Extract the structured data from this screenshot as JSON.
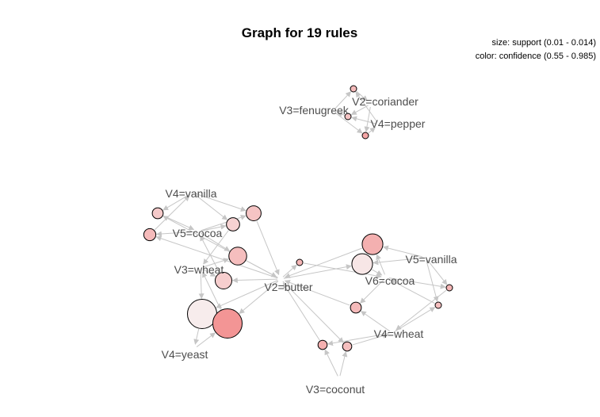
{
  "title": "Graph for 19 rules",
  "legend": {
    "size": "size: support (0.01 - 0.014)",
    "color": "color: confidence (0.55 - 0.985)"
  },
  "colors": {
    "edge": "#c6c6c6",
    "label": "#4d4d4d",
    "low_confidence": "#f7ecec",
    "high_confidence": "#f39595"
  },
  "items": [
    {
      "id": "fenugreek",
      "label": "V3=fenugreek"
    },
    {
      "id": "coriander",
      "label": "V2=coriander"
    },
    {
      "id": "pepper",
      "label": "V4=pepper"
    },
    {
      "id": "vanilla4",
      "label": "V4=vanilla"
    },
    {
      "id": "cocoa5",
      "label": "V5=cocoa"
    },
    {
      "id": "wheat3",
      "label": "V3=wheat"
    },
    {
      "id": "butter",
      "label": "V2=butter"
    },
    {
      "id": "yeast",
      "label": "V4=yeast"
    },
    {
      "id": "vanilla5",
      "label": "V5=vanilla"
    },
    {
      "id": "cocoa6",
      "label": "V6=cocoa"
    },
    {
      "id": "wheat4",
      "label": "V4=wheat"
    },
    {
      "id": "coconut",
      "label": "V3=coconut"
    }
  ],
  "rules": [
    {
      "id": "r1",
      "support": 0.01,
      "confidence": 0.8,
      "lhs": [
        "fenugreek",
        "pepper"
      ],
      "rhs": "coriander"
    },
    {
      "id": "r2",
      "support": 0.01,
      "confidence": 0.75,
      "lhs": [
        "coriander",
        "pepper"
      ],
      "rhs": "fenugreek"
    },
    {
      "id": "r3",
      "support": 0.01,
      "confidence": 0.9,
      "lhs": [
        "fenugreek",
        "coriander"
      ],
      "rhs": "pepper"
    },
    {
      "id": "r4",
      "support": 0.0115,
      "confidence": 0.75,
      "lhs": [
        "vanilla4",
        "cocoa5"
      ],
      "rhs": "butter"
    },
    {
      "id": "r5",
      "support": 0.0108,
      "confidence": 0.72,
      "lhs": [
        "vanilla4",
        "butter"
      ],
      "rhs": "cocoa5"
    },
    {
      "id": "r6",
      "support": 0.011,
      "confidence": 0.8,
      "lhs": [
        "cocoa5",
        "butter"
      ],
      "rhs": "vanilla4"
    },
    {
      "id": "r7",
      "support": 0.0112,
      "confidence": 0.68,
      "lhs": [
        "vanilla4",
        "cocoa5"
      ],
      "rhs": "wheat3"
    },
    {
      "id": "r8",
      "support": 0.012,
      "confidence": 0.78,
      "lhs": [
        "cocoa5",
        "wheat3"
      ],
      "rhs": "butter"
    },
    {
      "id": "r9",
      "support": 0.0118,
      "confidence": 0.7,
      "lhs": [
        "wheat3",
        "butter"
      ],
      "rhs": "cocoa5"
    },
    {
      "id": "r10",
      "support": 0.014,
      "confidence": 0.55,
      "lhs": [
        "wheat3",
        "butter"
      ],
      "rhs": "yeast"
    },
    {
      "id": "r11",
      "support": 0.014,
      "confidence": 0.985,
      "lhs": [
        "yeast",
        "butter"
      ],
      "rhs": "wheat3"
    },
    {
      "id": "r12",
      "support": 0.01,
      "confidence": 0.82,
      "lhs": [
        "butter"
      ],
      "rhs": "cocoa6"
    },
    {
      "id": "r13",
      "support": 0.0125,
      "confidence": 0.85,
      "lhs": [
        "vanilla5",
        "cocoa6"
      ],
      "rhs": "butter"
    },
    {
      "id": "r14",
      "support": 0.0125,
      "confidence": 0.58,
      "lhs": [
        "vanilla5",
        "butter"
      ],
      "rhs": "cocoa6"
    },
    {
      "id": "r15",
      "support": 0.01,
      "confidence": 0.82,
      "lhs": [
        "vanilla5",
        "cocoa6"
      ],
      "rhs": "wheat4"
    },
    {
      "id": "r16",
      "support": 0.01,
      "confidence": 0.78,
      "lhs": [
        "wheat4",
        "vanilla5"
      ],
      "rhs": "cocoa6"
    },
    {
      "id": "r17",
      "support": 0.0108,
      "confidence": 0.8,
      "lhs": [
        "wheat4",
        "cocoa6"
      ],
      "rhs": "butter"
    },
    {
      "id": "r18",
      "support": 0.0105,
      "confidence": 0.85,
      "lhs": [
        "coconut",
        "wheat4"
      ],
      "rhs": "butter"
    },
    {
      "id": "r19",
      "support": 0.0105,
      "confidence": 0.78,
      "lhs": [
        "coconut",
        "butter"
      ],
      "rhs": "wheat4"
    }
  ]
}
